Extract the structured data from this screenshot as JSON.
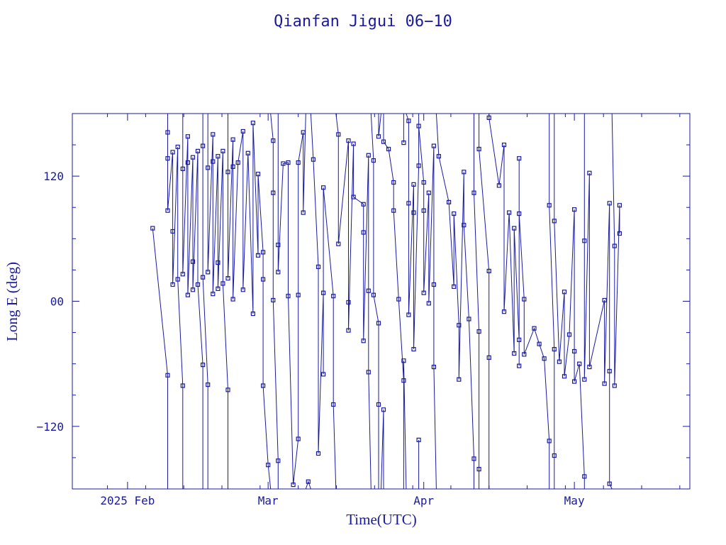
{
  "chart_data": {
    "type": "line",
    "title": "Qianfan Jigui 06−10",
    "xlabel": "Time(UTC)",
    "ylabel": "Long E (deg)",
    "xlim": [
      "2025-01-21",
      "2025-05-24"
    ],
    "ylim": [
      -180,
      180
    ],
    "x_ticks": [
      {
        "date": "2025-02-01",
        "label": "2025 Feb"
      },
      {
        "date": "2025-03-01",
        "label": "Mar"
      },
      {
        "date": "2025-04-01",
        "label": "Apr"
      },
      {
        "date": "2025-05-01",
        "label": "May"
      }
    ],
    "y_ticks": [
      {
        "value": 120,
        "label": "120"
      },
      {
        "value": 0,
        "label": "00"
      },
      {
        "value": -120,
        "label": "−120"
      }
    ],
    "grid": false,
    "marker": "square",
    "line_color": "#1a1aa0",
    "series": [
      {
        "points": [
          [
            "2025-02-06",
            70
          ],
          [
            "2025-02-09",
            -71
          ],
          [
            "2025-02-09",
            162
          ],
          [
            "2025-02-09",
            137
          ],
          [
            "2025-02-09",
            87
          ],
          [
            "2025-02-10",
            143
          ],
          [
            "2025-02-10",
            67
          ],
          [
            "2025-02-10",
            16
          ],
          [
            "2025-02-11",
            148
          ],
          [
            "2025-02-11",
            21
          ],
          [
            "2025-02-12",
            -81
          ],
          [
            "2025-02-12",
            127
          ],
          [
            "2025-02-12",
            26
          ],
          [
            "2025-02-13",
            158
          ],
          [
            "2025-02-13",
            133
          ],
          [
            "2025-02-13",
            6
          ],
          [
            "2025-02-14",
            138
          ],
          [
            "2025-02-14",
            38
          ],
          [
            "2025-02-14",
            11
          ],
          [
            "2025-02-15",
            144
          ],
          [
            "2025-02-15",
            16
          ],
          [
            "2025-02-16",
            -61
          ],
          [
            "2025-02-16",
            149
          ],
          [
            "2025-02-16",
            23
          ],
          [
            "2025-02-17",
            -80
          ],
          [
            "2025-02-17",
            128
          ],
          [
            "2025-02-17",
            28
          ],
          [
            "2025-02-18",
            160
          ],
          [
            "2025-02-18",
            134
          ],
          [
            "2025-02-18",
            7
          ],
          [
            "2025-02-19",
            139
          ],
          [
            "2025-02-19",
            37
          ],
          [
            "2025-02-19",
            12
          ],
          [
            "2025-02-20",
            144
          ],
          [
            "2025-02-20",
            17
          ],
          [
            "2025-02-21",
            -85
          ],
          [
            "2025-02-21",
            124
          ],
          [
            "2025-02-21",
            22
          ],
          [
            "2025-02-22",
            155
          ],
          [
            "2025-02-22",
            129
          ],
          [
            "2025-02-22",
            2
          ],
          [
            "2025-02-23",
            133
          ],
          [
            "2025-02-24",
            163
          ],
          [
            "2025-02-24",
            11
          ],
          [
            "2025-02-25",
            142
          ],
          [
            "2025-02-26",
            -12
          ],
          [
            "2025-02-26",
            171
          ],
          [
            "2025-02-27",
            44
          ],
          [
            "2025-02-27",
            122
          ],
          [
            "2025-02-28",
            47
          ],
          [
            "2025-02-28",
            21
          ],
          [
            "2025-02-28",
            -81
          ],
          [
            "2025-03-01",
            -157
          ],
          [
            "2025-03-02",
            154
          ],
          [
            "2025-03-02",
            104
          ],
          [
            "2025-03-02",
            1
          ],
          [
            "2025-03-03",
            -153
          ],
          [
            "2025-03-03",
            54
          ],
          [
            "2025-03-03",
            28
          ],
          [
            "2025-03-04",
            132
          ],
          [
            "2025-03-05",
            133
          ],
          [
            "2025-03-05",
            5
          ],
          [
            "2025-03-06",
            -176
          ],
          [
            "2025-03-07",
            -132
          ],
          [
            "2025-03-07",
            6
          ],
          [
            "2025-03-07",
            133
          ],
          [
            "2025-03-08",
            162
          ],
          [
            "2025-03-08",
            85
          ],
          [
            "2025-03-09",
            -173
          ],
          [
            "2025-03-10",
            136
          ],
          [
            "2025-03-11",
            33
          ],
          [
            "2025-03-11",
            -146
          ],
          [
            "2025-03-12",
            8
          ],
          [
            "2025-03-12",
            -70
          ],
          [
            "2025-03-12",
            109
          ],
          [
            "2025-03-14",
            5
          ],
          [
            "2025-03-14",
            -99
          ],
          [
            "2025-03-15",
            160
          ],
          [
            "2025-03-15",
            55
          ],
          [
            "2025-03-17",
            154
          ],
          [
            "2025-03-17",
            -1
          ],
          [
            "2025-03-17",
            -28
          ],
          [
            "2025-03-18",
            151
          ],
          [
            "2025-03-18",
            100
          ],
          [
            "2025-03-20",
            93
          ],
          [
            "2025-03-20",
            66
          ],
          [
            "2025-03-20",
            -38
          ],
          [
            "2025-03-21",
            140
          ],
          [
            "2025-03-21",
            10
          ],
          [
            "2025-03-21",
            -68
          ],
          [
            "2025-03-22",
            135
          ],
          [
            "2025-03-22",
            6
          ],
          [
            "2025-03-23",
            -21
          ],
          [
            "2025-03-23",
            -99
          ],
          [
            "2025-03-23",
            158
          ],
          [
            "2025-03-24",
            -104
          ],
          [
            "2025-03-24",
            153
          ],
          [
            "2025-03-25",
            146
          ],
          [
            "2025-03-26",
            114
          ],
          [
            "2025-03-26",
            87
          ],
          [
            "2025-03-27",
            2
          ],
          [
            "2025-03-28",
            -76
          ],
          [
            "2025-03-28",
            152
          ],
          [
            "2025-03-28",
            -57
          ],
          [
            "2025-03-29",
            173
          ],
          [
            "2025-03-29",
            94
          ],
          [
            "2025-03-29",
            -13
          ],
          [
            "2025-03-30",
            112
          ],
          [
            "2025-03-30",
            85
          ],
          [
            "2025-03-30",
            -46
          ],
          [
            "2025-03-31",
            130
          ],
          [
            "2025-03-31",
            -133
          ],
          [
            "2025-03-31",
            168
          ],
          [
            "2025-04-01",
            114
          ],
          [
            "2025-04-01",
            87
          ],
          [
            "2025-04-01",
            8
          ],
          [
            "2025-04-02",
            104
          ],
          [
            "2025-04-02",
            -2
          ],
          [
            "2025-04-03",
            149
          ],
          [
            "2025-04-03",
            16
          ],
          [
            "2025-04-03",
            -63
          ],
          [
            "2025-04-04",
            139
          ],
          [
            "2025-04-06",
            95
          ],
          [
            "2025-04-07",
            14
          ],
          [
            "2025-04-07",
            84
          ],
          [
            "2025-04-08",
            -23
          ],
          [
            "2025-04-08",
            -75
          ],
          [
            "2025-04-09",
            124
          ],
          [
            "2025-04-09",
            73
          ],
          [
            "2025-04-10",
            -17
          ],
          [
            "2025-04-11",
            -151
          ],
          [
            "2025-04-11",
            104
          ],
          [
            "2025-04-12",
            -29
          ],
          [
            "2025-04-12",
            -161
          ],
          [
            "2025-04-12",
            146
          ],
          [
            "2025-04-14",
            29
          ],
          [
            "2025-04-14",
            -54
          ],
          [
            "2025-04-14",
            176
          ],
          [
            "2025-04-16",
            111
          ],
          [
            "2025-04-17",
            150
          ],
          [
            "2025-04-17",
            -10
          ],
          [
            "2025-04-18",
            85
          ],
          [
            "2025-04-19",
            -50
          ],
          [
            "2025-04-19",
            70
          ],
          [
            "2025-04-20",
            -37
          ],
          [
            "2025-04-20",
            -62
          ],
          [
            "2025-04-20",
            137
          ],
          [
            "2025-04-20",
            84
          ],
          [
            "2025-04-21",
            2
          ],
          [
            "2025-04-21",
            -51
          ],
          [
            "2025-04-23",
            -26
          ],
          [
            "2025-04-24",
            -41
          ],
          [
            "2025-04-25",
            -55
          ],
          [
            "2025-04-26",
            -134
          ],
          [
            "2025-04-26",
            92
          ],
          [
            "2025-04-27",
            -46
          ],
          [
            "2025-04-27",
            -148
          ],
          [
            "2025-04-27",
            77
          ],
          [
            "2025-04-28",
            -58
          ],
          [
            "2025-04-29",
            9
          ],
          [
            "2025-04-29",
            -72
          ],
          [
            "2025-04-30",
            -32
          ],
          [
            "2025-05-01",
            88
          ],
          [
            "2025-05-01",
            -48
          ],
          [
            "2025-05-01",
            -77
          ],
          [
            "2025-05-02",
            -60
          ],
          [
            "2025-05-03",
            -168
          ],
          [
            "2025-05-03",
            58
          ],
          [
            "2025-05-03",
            -75
          ],
          [
            "2025-05-04",
            123
          ],
          [
            "2025-05-04",
            -63
          ],
          [
            "2025-05-07",
            1
          ],
          [
            "2025-05-07",
            -79
          ],
          [
            "2025-05-08",
            94
          ],
          [
            "2025-05-08",
            -67
          ],
          [
            "2025-05-08",
            -175
          ],
          [
            "2025-05-09",
            53
          ],
          [
            "2025-05-09",
            -81
          ],
          [
            "2025-05-10",
            92
          ],
          [
            "2025-05-10",
            65
          ]
        ]
      }
    ]
  }
}
